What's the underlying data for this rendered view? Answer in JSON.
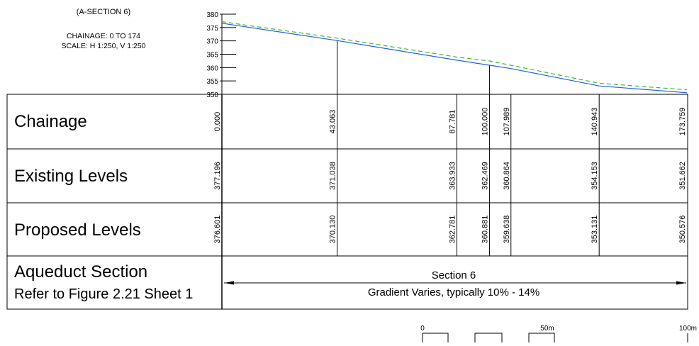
{
  "header": {
    "section": "(A-SECTION 6)",
    "chainage": "CHAINAGE: 0 TO 174",
    "scale": "SCALE: H 1:250, V 1:250"
  },
  "colors": {
    "existing": "#2ebd2e",
    "proposed": "#2060e0",
    "grid": "#000000"
  },
  "chart_data": {
    "type": "line",
    "title": "(A-SECTION 6)",
    "xlabel": "Chainage",
    "ylabel": "",
    "xlim": [
      0,
      174
    ],
    "ylim": [
      350,
      380
    ],
    "y_ticks": [
      380,
      375,
      370,
      365,
      360,
      355,
      350
    ],
    "series": [
      {
        "name": "Existing Levels",
        "style": "dashed",
        "color": "#2ebd2e",
        "x": [
          0.0,
          43.063,
          87.781,
          100.0,
          107.989,
          140.943,
          173.759
        ],
        "y": [
          377.196,
          371.038,
          363.933,
          362.469,
          360.864,
          354.153,
          351.662
        ]
      },
      {
        "name": "Proposed Levels",
        "style": "solid",
        "color": "#2060e0",
        "x": [
          0.0,
          43.063,
          87.781,
          100.0,
          107.989,
          140.943,
          173.759
        ],
        "y": [
          376.601,
          370.13,
          362.781,
          360.881,
          359.638,
          353.131,
          350.576
        ]
      }
    ],
    "verticals": [
      43.063,
      100.0
    ]
  },
  "table": {
    "rows": [
      {
        "label": "Chainage",
        "values": [
          "0.000",
          "43.063",
          "87.781",
          "100.000",
          "107.989",
          "140.943",
          "173.759"
        ]
      },
      {
        "label": "Existing Levels",
        "values": [
          "377.196",
          "371.038",
          "363.933",
          "362.469",
          "360.864",
          "354.153",
          "351.662"
        ]
      },
      {
        "label": "Proposed Levels",
        "values": [
          "376.601",
          "370.130",
          "362.781",
          "360.881",
          "359.638",
          "353.131",
          "350.576"
        ]
      }
    ],
    "aqueduct": {
      "label1": "Aqueduct Section",
      "label2": "Refer to Figure 2.21 Sheet 1",
      "section": "Section 6",
      "gradient": "Gradient Varies, typically 10% - 14%"
    }
  },
  "scalebar": {
    "start": "0",
    "mid": "50m",
    "end": "100m"
  }
}
